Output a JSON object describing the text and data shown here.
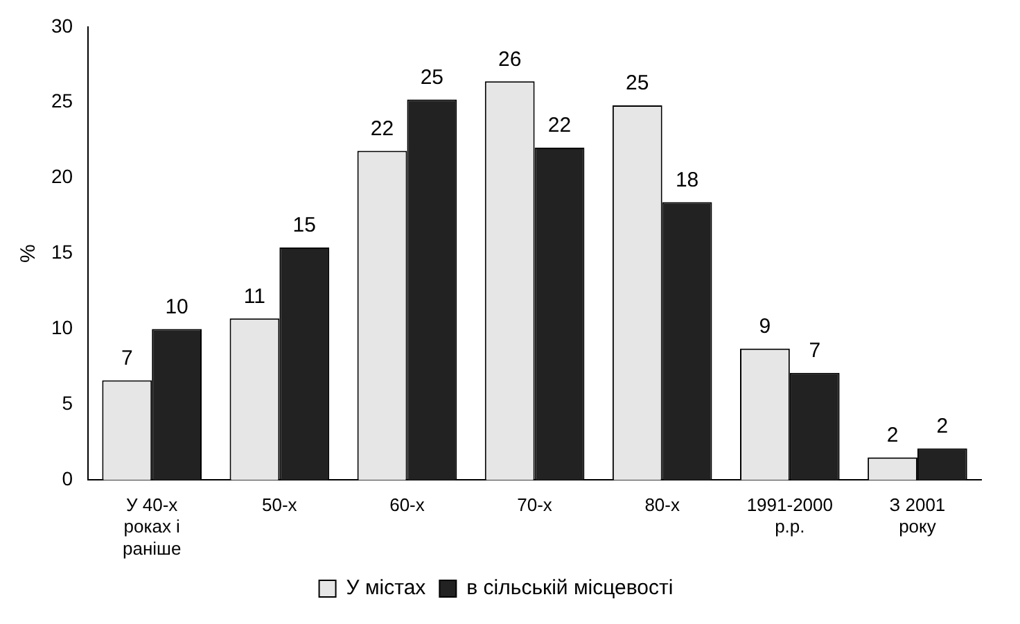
{
  "chart_data": {
    "type": "bar",
    "ylabel": "%",
    "categories": [
      "У 40-х\nроках і\nраніше",
      "50-х",
      "60-х",
      "70-х",
      "80-х",
      "1991-2000\nр.р.",
      "З 2001\nроку"
    ],
    "series": [
      {
        "name": "У містах",
        "color": "#e6e6e6",
        "values": [
          6.6,
          10.7,
          21.8,
          26.4,
          24.8,
          8.7,
          1.5
        ],
        "value_labels": [
          "7",
          "11",
          "22",
          "26",
          "25",
          "9",
          "2"
        ]
      },
      {
        "name": "в сільській місцевості",
        "color": "#222222",
        "values": [
          10.0,
          15.4,
          25.2,
          22.0,
          18.4,
          7.1,
          2.1
        ],
        "value_labels": [
          "10",
          "15",
          "25",
          "22",
          "18",
          "7",
          "2"
        ]
      }
    ],
    "ylim": [
      0,
      30
    ],
    "yticks": [
      0,
      5,
      10,
      15,
      20,
      25,
      30
    ],
    "grid": false,
    "legend": "bottom"
  }
}
